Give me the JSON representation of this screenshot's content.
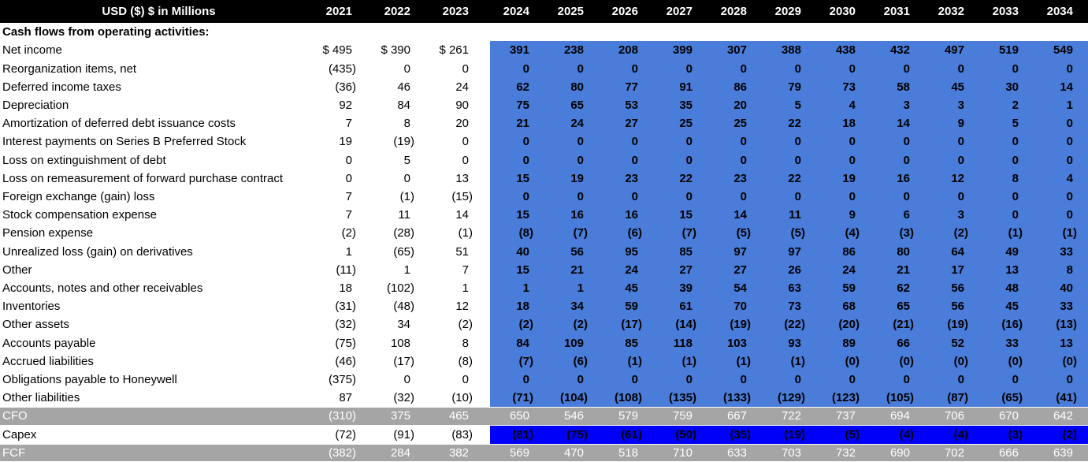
{
  "title": "USD ($) $ in Millions",
  "section_header": "Cash flows from operating activities:",
  "years": [
    "2021",
    "2022",
    "2023",
    "2024",
    "2025",
    "2026",
    "2027",
    "2028",
    "2029",
    "2030",
    "2031",
    "2032",
    "2033",
    "2034"
  ],
  "historical_count": 3,
  "colors": {
    "header_bg": "#000000",
    "forecast_bg": "#4A7CD9",
    "capex_bg": "#0000FA",
    "total_bg": "#A5A5A5"
  },
  "rows": [
    {
      "label": "Net income",
      "type": "item",
      "values": [
        "$ 495",
        "$ 390",
        "$ 261",
        "391",
        "238",
        "208",
        "399",
        "307",
        "388",
        "438",
        "432",
        "497",
        "519",
        "549"
      ]
    },
    {
      "label": "Reorganization items, net",
      "type": "item",
      "values": [
        "(435)",
        "0",
        "0",
        "0",
        "0",
        "0",
        "0",
        "0",
        "0",
        "0",
        "0",
        "0",
        "0",
        "0"
      ]
    },
    {
      "label": "Deferred income taxes",
      "type": "item",
      "values": [
        "(36)",
        "46",
        "24",
        "62",
        "80",
        "77",
        "91",
        "86",
        "79",
        "73",
        "58",
        "45",
        "30",
        "14"
      ]
    },
    {
      "label": "Depreciation",
      "type": "item",
      "values": [
        "92",
        "84",
        "90",
        "75",
        "65",
        "53",
        "35",
        "20",
        "5",
        "4",
        "3",
        "3",
        "2",
        "1"
      ]
    },
    {
      "label": "Amortization of deferred debt issuance costs",
      "type": "item",
      "values": [
        "7",
        "8",
        "20",
        "21",
        "24",
        "27",
        "25",
        "25",
        "22",
        "18",
        "14",
        "9",
        "5",
        "0"
      ]
    },
    {
      "label": "Interest payments on Series B Preferred Stock",
      "type": "item",
      "values": [
        "19",
        "(19)",
        "0",
        "0",
        "0",
        "0",
        "0",
        "0",
        "0",
        "0",
        "0",
        "0",
        "0",
        "0"
      ]
    },
    {
      "label": "Loss on extinguishment of debt",
      "type": "item",
      "values": [
        "0",
        "5",
        "0",
        "0",
        "0",
        "0",
        "0",
        "0",
        "0",
        "0",
        "0",
        "0",
        "0",
        "0"
      ]
    },
    {
      "label": "Loss on remeasurement of forward purchase contract",
      "type": "item",
      "values": [
        "0",
        "0",
        "13",
        "15",
        "19",
        "23",
        "22",
        "23",
        "22",
        "19",
        "16",
        "12",
        "8",
        "4"
      ]
    },
    {
      "label": "Foreign exchange (gain) loss",
      "type": "item",
      "values": [
        "7",
        "(1)",
        "(15)",
        "0",
        "0",
        "0",
        "0",
        "0",
        "0",
        "0",
        "0",
        "0",
        "0",
        "0"
      ]
    },
    {
      "label": "Stock compensation expense",
      "type": "item",
      "values": [
        "7",
        "11",
        "14",
        "15",
        "16",
        "16",
        "15",
        "14",
        "11",
        "9",
        "6",
        "3",
        "0",
        "0"
      ]
    },
    {
      "label": "Pension expense",
      "type": "item",
      "values": [
        "(2)",
        "(28)",
        "(1)",
        "(8)",
        "(7)",
        "(6)",
        "(7)",
        "(5)",
        "(5)",
        "(4)",
        "(3)",
        "(2)",
        "(1)",
        "(1)"
      ]
    },
    {
      "label": "Unrealized loss (gain) on derivatives",
      "type": "item",
      "values": [
        "1",
        "(65)",
        "51",
        "40",
        "56",
        "95",
        "85",
        "97",
        "97",
        "86",
        "80",
        "64",
        "49",
        "33"
      ]
    },
    {
      "label": "Other",
      "type": "item",
      "values": [
        "(11)",
        "1",
        "7",
        "15",
        "21",
        "24",
        "27",
        "27",
        "26",
        "24",
        "21",
        "17",
        "13",
        "8"
      ]
    },
    {
      "label": "Accounts, notes and other receivables",
      "type": "item",
      "values": [
        "18",
        "(102)",
        "1",
        "1",
        "1",
        "45",
        "39",
        "54",
        "63",
        "59",
        "62",
        "56",
        "48",
        "40"
      ]
    },
    {
      "label": "Inventories",
      "type": "item",
      "values": [
        "(31)",
        "(48)",
        "12",
        "18",
        "34",
        "59",
        "61",
        "70",
        "73",
        "68",
        "65",
        "56",
        "45",
        "33"
      ]
    },
    {
      "label": "Other assets",
      "type": "item",
      "values": [
        "(32)",
        "34",
        "(2)",
        "(2)",
        "(2)",
        "(17)",
        "(14)",
        "(19)",
        "(22)",
        "(20)",
        "(21)",
        "(19)",
        "(16)",
        "(13)"
      ]
    },
    {
      "label": "Accounts payable",
      "type": "item",
      "values": [
        "(75)",
        "108",
        "8",
        "84",
        "109",
        "85",
        "118",
        "103",
        "93",
        "89",
        "66",
        "52",
        "33",
        "13"
      ]
    },
    {
      "label": "Accrued liabilities",
      "type": "item",
      "values": [
        "(46)",
        "(17)",
        "(8)",
        "(7)",
        "(6)",
        "(1)",
        "(1)",
        "(1)",
        "(1)",
        "(0)",
        "(0)",
        "(0)",
        "(0)",
        "(0)"
      ]
    },
    {
      "label": "Obligations payable to Honeywell",
      "type": "item",
      "values": [
        "(375)",
        "0",
        "0",
        "0",
        "0",
        "0",
        "0",
        "0",
        "0",
        "0",
        "0",
        "0",
        "0",
        "0"
      ]
    },
    {
      "label": "Other liabilities",
      "type": "item",
      "values": [
        "87",
        "(32)",
        "(10)",
        "(71)",
        "(104)",
        "(108)",
        "(135)",
        "(133)",
        "(129)",
        "(123)",
        "(105)",
        "(87)",
        "(65)",
        "(41)"
      ]
    },
    {
      "label": "CFO",
      "type": "total",
      "values": [
        "(310)",
        "375",
        "465",
        "650",
        "546",
        "579",
        "759",
        "667",
        "722",
        "737",
        "694",
        "706",
        "670",
        "642"
      ]
    },
    {
      "label": "Capex",
      "type": "capex",
      "values": [
        "(72)",
        "(91)",
        "(83)",
        "(81)",
        "(75)",
        "(61)",
        "(50)",
        "(35)",
        "(19)",
        "(5)",
        "(4)",
        "(4)",
        "(3)",
        "(2)"
      ]
    },
    {
      "label": "FCF",
      "type": "total",
      "values": [
        "(382)",
        "284",
        "382",
        "569",
        "470",
        "518",
        "710",
        "633",
        "703",
        "732",
        "690",
        "702",
        "666",
        "639"
      ]
    }
  ]
}
